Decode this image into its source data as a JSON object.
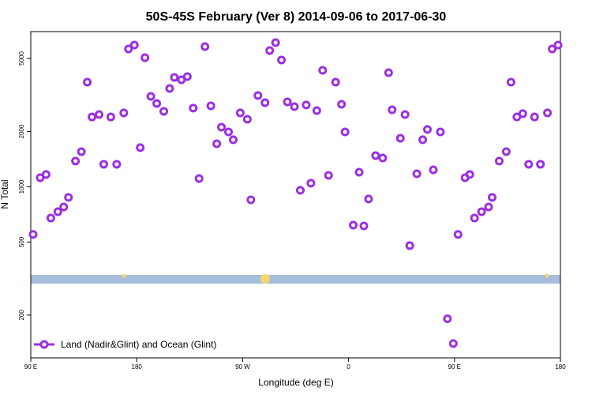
{
  "chart_data": {
    "type": "scatter",
    "title": "50S-45S February (Ver 8)   2014-09-06 to 2017-06-30",
    "xlabel": "Longitude (deg E)",
    "ylabel": "N Total",
    "xlim": [
      90,
      540
    ],
    "ylim": [
      117,
      7000
    ],
    "ylog": true,
    "xticks": [
      {
        "value": 90,
        "label": "90 E"
      },
      180,
      {
        "value": 270,
        "label": "90 W"
      },
      {
        "value": 360,
        "label": "0"
      },
      {
        "value": 450,
        "label": "90 E"
      },
      {
        "value": 540,
        "label": "180"
      }
    ],
    "yticks": [
      200,
      500,
      1000,
      2000,
      5000
    ],
    "legend": "lower left",
    "series": [
      {
        "name": "Land (Nadir&Glint) and Ocean (Glint)",
        "color": "#9b30e0",
        "x": [
          92,
          98,
          103,
          107,
          113,
          118,
          122,
          128,
          133,
          138,
          142,
          148,
          152,
          158,
          163,
          169,
          173,
          178,
          183,
          187,
          192,
          197,
          203,
          208,
          212,
          218,
          223,
          228,
          233,
          238,
          243,
          248,
          252,
          258,
          262,
          268,
          274,
          277,
          283,
          289,
          293,
          298,
          303,
          308,
          314,
          319,
          324,
          328,
          333,
          338,
          343,
          349,
          354,
          357,
          364,
          369,
          373,
          377,
          383,
          389,
          394,
          397,
          404,
          408,
          412,
          418,
          423,
          427,
          432,
          438,
          444,
          449,
          453,
          459,
          463,
          467,
          473,
          479,
          482,
          488,
          494,
          498,
          503,
          508,
          513,
          518,
          523,
          529,
          533,
          538
        ],
        "values": [
          550,
          1120,
          1166,
          676,
          731,
          776,
          875,
          1380,
          1553,
          3714,
          2400,
          2474,
          1326,
          2400,
          1326,
          2525,
          5628,
          5915,
          1633,
          5045,
          3108,
          2842,
          2575,
          3430,
          3940,
          3826,
          3980,
          2680,
          1109,
          5800,
          2760,
          1715,
          2112,
          1990,
          1803,
          2525,
          2332,
          849,
          3140,
          2870,
          5520,
          6096,
          4900,
          2900,
          2730,
          957,
          2790,
          1046,
          2600,
          4310,
          1154,
          3714,
          2813,
          1990,
          618,
          1200,
          612,
          858,
          1478,
          1435,
          4180,
          2625,
          1838,
          2474,
          478,
          1177,
          1803,
          2051,
          1236,
          1990,
          191,
          140,
          550,
          1120,
          1166,
          676,
          731,
          776,
          875,
          1380,
          1553,
          3714,
          2400,
          2500,
          1326,
          2400,
          1326,
          2525,
          5628,
          5915
        ]
      }
    ]
  }
}
